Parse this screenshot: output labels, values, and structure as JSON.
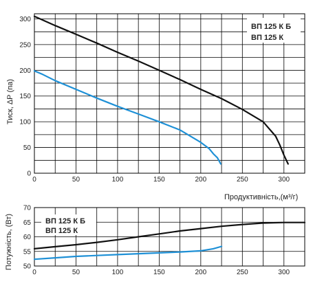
{
  "chart_data": [
    {
      "type": "line",
      "xlabel": "Продуктивність,",
      "xlabel_unit": "(м³/г)",
      "ylabel": "Тиск, ΔР (па)",
      "xlim": [
        0,
        325
      ],
      "ylim": [
        0,
        310
      ],
      "x_ticks": [
        "0",
        "50",
        "100",
        "150",
        "200",
        "250",
        "300"
      ],
      "y_ticks": [
        "0",
        "50",
        "100",
        "150",
        "200",
        "250",
        "300"
      ],
      "grid": true,
      "legend_position": "top-right",
      "series": [
        {
          "name": "ВП 125 К Б",
          "color": "#1e90d6",
          "x": [
            0,
            10,
            25,
            50,
            75,
            100,
            125,
            150,
            175,
            200,
            210,
            215,
            220,
            224
          ],
          "y": [
            199,
            192,
            180,
            163,
            146,
            130,
            115,
            100,
            84,
            60,
            48,
            38,
            30,
            18
          ]
        },
        {
          "name": "ВП 125 К",
          "color": "#111111",
          "x": [
            0,
            25,
            50,
            75,
            100,
            125,
            150,
            175,
            200,
            225,
            250,
            275,
            290,
            295,
            300,
            305
          ],
          "y": [
            305,
            287,
            270,
            253,
            235,
            218,
            200,
            182,
            163,
            145,
            124,
            100,
            72,
            55,
            35,
            18
          ]
        }
      ]
    },
    {
      "type": "line",
      "xlabel": "",
      "ylabel": "Потужність, (Вт)",
      "xlim": [
        0,
        325
      ],
      "ylim": [
        50,
        70
      ],
      "x_ticks": [
        "0",
        "50",
        "100",
        "150",
        "200",
        "250",
        "300"
      ],
      "y_ticks": [
        "50",
        "55",
        "60",
        "65",
        "70"
      ],
      "grid": true,
      "legend_position": "top-left",
      "series": [
        {
          "name": "ВП 125 К Б",
          "color": "#1e90d6",
          "x": [
            0,
            25,
            50,
            75,
            100,
            125,
            150,
            175,
            200,
            215,
            225
          ],
          "y": [
            52.3,
            52.8,
            53.3,
            53.6,
            53.9,
            54.2,
            54.5,
            54.8,
            55.2,
            55.9,
            56.7
          ]
        },
        {
          "name": "ВП 125 К",
          "color": "#111111",
          "x": [
            0,
            25,
            50,
            75,
            100,
            125,
            150,
            175,
            200,
            225,
            250,
            275,
            300,
            325
          ],
          "y": [
            55.9,
            56.6,
            57.3,
            58.1,
            59.0,
            60.0,
            61.0,
            62.0,
            62.8,
            63.6,
            64.2,
            64.7,
            64.9,
            64.9
          ]
        }
      ]
    }
  ]
}
